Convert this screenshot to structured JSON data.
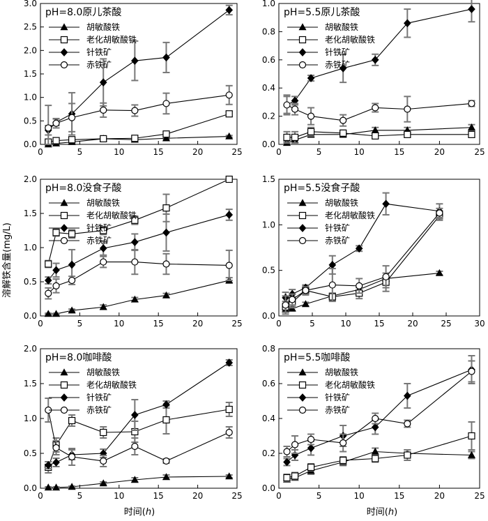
{
  "page": {
    "ylabel": "溶解铁含量(mg/L)",
    "xlabel_prefix": "时间(",
    "xlabel_var": "h",
    "xlabel_suffix": ")"
  },
  "chart_data": [
    {
      "type": "line",
      "title": "pH=8.0原儿茶酸",
      "xlim": [
        0,
        25
      ],
      "ylim": [
        0,
        3.0
      ],
      "xticks": [
        0,
        5,
        10,
        15,
        20,
        25
      ],
      "yticks": [
        0.0,
        0.5,
        1.0,
        1.5,
        2.0,
        2.5,
        3.0
      ],
      "ytick_labels": [
        "0.0",
        "0.5",
        "1.0",
        "1.5",
        "2.0",
        "2.5",
        "3.0"
      ],
      "legend_position": "top-left",
      "x": [
        1,
        2,
        4,
        8,
        12,
        16,
        24
      ],
      "series": [
        {
          "name": "胡敏酸铁",
          "marker": "triangle",
          "values": [
            0.0,
            0.02,
            0.05,
            0.12,
            0.1,
            0.13,
            0.17
          ],
          "errors": [
            0.02,
            0.02,
            0.03,
            0.02,
            0.02,
            0.02,
            0.02
          ]
        },
        {
          "name": "老化胡敏酸铁",
          "marker": "square",
          "values": [
            0.05,
            0.08,
            0.1,
            0.12,
            0.13,
            0.22,
            0.65
          ],
          "errors": [
            0.03,
            0.03,
            0.04,
            0.03,
            0.03,
            0.05,
            0.05
          ]
        },
        {
          "name": "针铁矿",
          "marker": "diamond",
          "values": [
            0.3,
            0.47,
            0.65,
            1.32,
            1.78,
            1.85,
            2.86
          ],
          "errors": [
            0.1,
            0.07,
            0.45,
            0.5,
            0.42,
            0.32,
            0.1
          ]
        },
        {
          "name": "赤铁矿",
          "marker": "circle",
          "values": [
            0.35,
            0.45,
            0.57,
            0.73,
            0.72,
            0.87,
            1.05
          ],
          "errors": [
            0.48,
            0.1,
            0.3,
            0.15,
            0.12,
            0.22,
            0.2
          ]
        }
      ]
    },
    {
      "type": "line",
      "title": "pH=5.5原儿茶酸",
      "xlim": [
        0,
        25
      ],
      "ylim": [
        0,
        1.0
      ],
      "xticks": [
        0,
        5,
        10,
        15,
        20,
        25
      ],
      "yticks": [
        0.0,
        0.2,
        0.4,
        0.6,
        0.8,
        1.0
      ],
      "ytick_labels": [
        "0.0",
        "0.2",
        "0.4",
        "0.6",
        "0.8",
        "1.0"
      ],
      "legend_position": "top-left",
      "x": [
        1,
        2,
        4,
        8,
        12,
        16,
        24
      ],
      "series": [
        {
          "name": "胡敏酸铁",
          "marker": "triangle",
          "values": [
            0.01,
            0.03,
            0.07,
            0.07,
            0.1,
            0.1,
            0.12
          ],
          "errors": [
            0.01,
            0.02,
            0.02,
            0.02,
            0.02,
            0.02,
            0.02
          ]
        },
        {
          "name": "老化胡敏酸铁",
          "marker": "square",
          "values": [
            0.05,
            0.05,
            0.09,
            0.08,
            0.06,
            0.07,
            0.07
          ],
          "errors": [
            0.04,
            0.04,
            0.03,
            0.02,
            0.02,
            0.02,
            0.02
          ]
        },
        {
          "name": "针铁矿",
          "marker": "diamond",
          "values": [
            0.28,
            0.31,
            0.47,
            0.54,
            0.6,
            0.86,
            0.96
          ],
          "errors": [
            0.06,
            0.03,
            0.02,
            0.1,
            0.04,
            0.1,
            0.09
          ]
        },
        {
          "name": "赤铁矿",
          "marker": "circle",
          "values": [
            0.28,
            0.25,
            0.2,
            0.17,
            0.26,
            0.25,
            0.29
          ],
          "errors": [
            0.07,
            0.04,
            0.06,
            0.04,
            0.03,
            0.09,
            0.02
          ]
        }
      ]
    },
    {
      "type": "line",
      "title": "pH=8.0没食子酸",
      "xlim": [
        0,
        25
      ],
      "ylim": [
        0,
        2.0
      ],
      "xticks": [
        0,
        5,
        10,
        15,
        20,
        25
      ],
      "yticks": [
        0.0,
        0.5,
        1.0,
        1.5,
        2.0
      ],
      "ytick_labels": [
        "0.0",
        "0.5",
        "1.0",
        "1.5",
        "2.0"
      ],
      "legend_position": "top-left",
      "x": [
        1,
        2,
        4,
        8,
        12,
        16,
        24
      ],
      "series": [
        {
          "name": "胡敏酸铁",
          "marker": "triangle",
          "values": [
            0.03,
            0.03,
            0.08,
            0.13,
            0.24,
            0.3,
            0.52
          ],
          "errors": [
            0.01,
            0.01,
            0.02,
            0.03,
            0.03,
            0.03,
            0.04
          ]
        },
        {
          "name": "老化胡敏酸铁",
          "marker": "square",
          "values": [
            0.76,
            1.22,
            1.2,
            1.25,
            1.4,
            1.58,
            2.0
          ],
          "errors": [
            0.05,
            0.05,
            0.06,
            0.06,
            0.06,
            0.2,
            0.02
          ]
        },
        {
          "name": "针铁矿",
          "marker": "diamond",
          "values": [
            0.52,
            0.67,
            0.75,
            0.99,
            1.08,
            1.22,
            1.48
          ],
          "errors": [
            0.05,
            0.1,
            0.22,
            0.1,
            0.12,
            0.27,
            0.08
          ]
        },
        {
          "name": "赤铁矿",
          "marker": "circle",
          "values": [
            0.33,
            0.44,
            0.52,
            0.79,
            0.79,
            0.76,
            0.74
          ],
          "errors": [
            0.08,
            0.1,
            0.06,
            0.08,
            0.18,
            0.15,
            0.22
          ]
        }
      ]
    },
    {
      "type": "line",
      "title": "pH=5.5没食子酸",
      "xlim": [
        0,
        30
      ],
      "ylim": [
        0,
        1.5
      ],
      "xticks": [
        0,
        5,
        10,
        15,
        20,
        25,
        30
      ],
      "yticks": [
        0.0,
        0.5,
        1.0,
        1.5
      ],
      "ytick_labels": [
        "0.0",
        "0.5",
        "1.0",
        "1.5"
      ],
      "legend_position": "top-left",
      "x": [
        1,
        2,
        4,
        8,
        12,
        16,
        24
      ],
      "series": [
        {
          "name": "胡敏酸铁",
          "marker": "triangle",
          "values": [
            0.07,
            0.08,
            0.13,
            0.22,
            0.29,
            0.41,
            0.47
          ],
          "errors": [
            0.02,
            0.02,
            0.02,
            0.03,
            0.03,
            0.03,
            0.02
          ]
        },
        {
          "name": "老化胡敏酸铁",
          "marker": "square",
          "values": [
            0.1,
            0.15,
            0.28,
            0.21,
            0.25,
            0.37,
            1.1
          ],
          "errors": [
            0.06,
            0.06,
            0.05,
            0.04,
            0.06,
            0.1,
            0.05
          ]
        },
        {
          "name": "针铁矿",
          "marker": "diamond",
          "values": [
            0.2,
            0.24,
            0.31,
            0.56,
            0.74,
            1.23,
            1.15
          ],
          "errors": [
            0.06,
            0.05,
            0.03,
            0.1,
            0.03,
            0.12,
            0.08
          ]
        },
        {
          "name": "赤铁矿",
          "marker": "circle",
          "values": [
            0.12,
            0.18,
            0.28,
            0.34,
            0.33,
            0.43,
            1.13
          ],
          "errors": [
            0.1,
            0.06,
            0.04,
            0.18,
            0.08,
            0.12,
            0.05
          ]
        }
      ]
    },
    {
      "type": "line",
      "title": "pH=8.0咖啡酸",
      "xlim": [
        0,
        25
      ],
      "ylim": [
        0,
        2.0
      ],
      "xticks": [
        0,
        5,
        10,
        15,
        20,
        25
      ],
      "yticks": [
        0.0,
        0.5,
        1.0,
        1.5,
        2.0
      ],
      "ytick_labels": [
        "0.0",
        "0.5",
        "1.0",
        "1.5",
        "2.0"
      ],
      "legend_position": "top-left",
      "x": [
        1,
        2,
        4,
        8,
        12,
        16,
        24
      ],
      "series": [
        {
          "name": "胡敏酸铁",
          "marker": "triangle",
          "values": [
            0.01,
            0.01,
            0.02,
            0.07,
            0.12,
            0.16,
            0.17
          ],
          "errors": [
            0.01,
            0.01,
            0.01,
            0.02,
            0.03,
            0.03,
            0.02
          ]
        },
        {
          "name": "老化胡敏酸铁",
          "marker": "square",
          "values": [
            0.3,
            0.62,
            0.97,
            0.8,
            0.81,
            0.98,
            1.13
          ],
          "errors": [
            0.08,
            0.1,
            0.08,
            0.08,
            0.15,
            0.2,
            0.1
          ]
        },
        {
          "name": "针铁矿",
          "marker": "diamond",
          "values": [
            0.33,
            0.37,
            0.48,
            0.5,
            1.05,
            1.2,
            1.8
          ],
          "errors": [
            0.05,
            0.06,
            0.07,
            0.06,
            0.22,
            0.05,
            0.04
          ]
        },
        {
          "name": "赤铁矿",
          "marker": "circle",
          "values": [
            1.12,
            0.58,
            0.45,
            0.39,
            0.6,
            0.39,
            0.8
          ],
          "errors": [
            0.17,
            0.1,
            0.12,
            0.08,
            0.12,
            0.03,
            0.08
          ]
        }
      ]
    },
    {
      "type": "line",
      "title": "pH=5.5咖啡酸",
      "xlim": [
        0,
        25
      ],
      "ylim": [
        0,
        0.8
      ],
      "xticks": [
        0,
        5,
        10,
        15,
        20,
        25
      ],
      "yticks": [
        0.0,
        0.2,
        0.4,
        0.6,
        0.8
      ],
      "ytick_labels": [
        "0.0",
        "0.2",
        "0.4",
        "0.6",
        "0.8"
      ],
      "legend_position": "top-left",
      "x": [
        1,
        2,
        4,
        8,
        12,
        16,
        24
      ],
      "series": [
        {
          "name": "胡敏酸铁",
          "marker": "triangle",
          "values": [
            0.05,
            0.06,
            0.1,
            0.15,
            0.21,
            0.2,
            0.19
          ],
          "errors": [
            0.01,
            0.01,
            0.02,
            0.02,
            0.02,
            0.02,
            0.02
          ]
        },
        {
          "name": "老化胡敏酸铁",
          "marker": "square",
          "values": [
            0.06,
            0.07,
            0.12,
            0.16,
            0.17,
            0.19,
            0.3
          ],
          "errors": [
            0.02,
            0.02,
            0.02,
            0.02,
            0.02,
            0.03,
            0.08
          ]
        },
        {
          "name": "针铁矿",
          "marker": "diamond",
          "values": [
            0.15,
            0.19,
            0.23,
            0.3,
            0.35,
            0.53,
            0.68
          ],
          "errors": [
            0.02,
            0.03,
            0.04,
            0.06,
            0.04,
            0.07,
            0.08
          ]
        },
        {
          "name": "赤铁矿",
          "marker": "circle",
          "values": [
            0.21,
            0.25,
            0.28,
            0.26,
            0.4,
            0.37,
            0.67
          ],
          "errors": [
            0.03,
            0.05,
            0.03,
            0.05,
            0.03,
            0.02,
            0.06
          ]
        }
      ]
    }
  ]
}
